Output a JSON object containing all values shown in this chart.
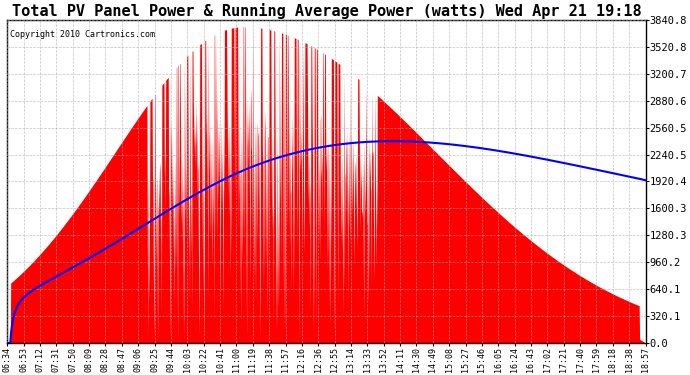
{
  "title": "Total PV Panel Power & Running Average Power (watts) Wed Apr 21 19:18",
  "copyright": "Copyright 2010 Cartronics.com",
  "y_ticks": [
    0.0,
    320.1,
    640.1,
    960.2,
    1280.3,
    1600.3,
    1920.4,
    2240.5,
    2560.5,
    2880.6,
    3200.7,
    3520.8,
    3840.8
  ],
  "y_max": 3840.8,
  "y_min": 0.0,
  "background_color": "#ffffff",
  "fill_color": "#ff0000",
  "avg_line_color": "#0000ff",
  "grid_color": "#aaaaaa",
  "title_fontsize": 11,
  "x_labels": [
    "06:34",
    "06:53",
    "07:12",
    "07:31",
    "07:50",
    "08:09",
    "08:28",
    "08:47",
    "09:06",
    "09:25",
    "09:44",
    "10:03",
    "10:22",
    "10:41",
    "11:00",
    "11:19",
    "11:38",
    "11:57",
    "12:16",
    "12:36",
    "12:55",
    "13:14",
    "13:33",
    "13:52",
    "14:11",
    "14:30",
    "14:49",
    "15:08",
    "15:27",
    "15:46",
    "16:05",
    "16:24",
    "16:43",
    "17:02",
    "17:21",
    "17:40",
    "17:59",
    "18:18",
    "18:38",
    "18:57"
  ]
}
